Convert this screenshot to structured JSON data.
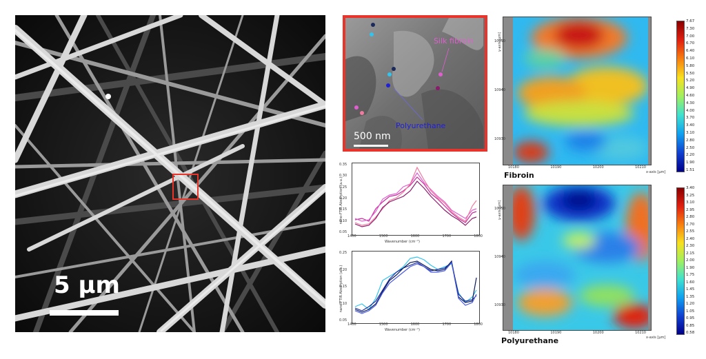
{
  "sem": {
    "scale_label": "5 µm"
  },
  "afm": {
    "label_silk": "Silk fibroin",
    "label_pu": "Polyurethane",
    "scale_label": "500 nm",
    "colors": {
      "silk": "#e05fd0",
      "pu": "#2020d8",
      "cyan": "#31c4ef",
      "navy": "#1a2a5a"
    }
  },
  "spectra_top": {
    "ylabel": "nano-FTIR Absorption (a.u.)",
    "xlabel": "Wavenumber (cm⁻¹)",
    "xticks": [
      "1400",
      "1500",
      "1600",
      "1700",
      "1800"
    ],
    "yticks": [
      "0.05",
      "0.10",
      "0.15",
      "0.20",
      "0.25",
      "0.30",
      "0.35"
    ],
    "colors": [
      "#c52a9a",
      "#e05fd0",
      "#f07aa0",
      "#8a1a6a"
    ]
  },
  "spectra_bottom": {
    "ylabel": "nano-FTIR Absorption (a.u.)",
    "xlabel": "Wavenumber (cm⁻¹)",
    "xticks": [
      "1400",
      "1500",
      "1600",
      "1700",
      "1800"
    ],
    "yticks": [
      "0.05",
      "0.10",
      "0.15",
      "0.20",
      "0.25"
    ],
    "colors": [
      "#31c4ef",
      "#1a2a9a",
      "#0a1a5a",
      "#4a5adf"
    ]
  },
  "map_fibroin": {
    "title": "Fibroin",
    "xaxis_label": "x-axis [µm]",
    "yaxis_label": "y-axis [µm]",
    "xticks": [
      "10180",
      "10190",
      "10200",
      "10210"
    ],
    "yticks": [
      "10950",
      "10940",
      "10930"
    ],
    "colorbar": [
      "7.67",
      "7.30",
      "7.00",
      "6.70",
      "6.40",
      "6.10",
      "5.80",
      "5.50",
      "5.20",
      "4.90",
      "4.60",
      "4.30",
      "4.00",
      "3.70",
      "3.40",
      "3.10",
      "2.80",
      "2.50",
      "2.20",
      "1.90",
      "1.51"
    ]
  },
  "map_pu": {
    "title": "Polyurethane",
    "xaxis_label": "x-axis [µm]",
    "yaxis_label": "y-axis [µm]",
    "xticks": [
      "10180",
      "10190",
      "10200",
      "10210"
    ],
    "yticks": [
      "10950",
      "10940",
      "10930"
    ],
    "colorbar": [
      "3.40",
      "3.25",
      "3.10",
      "2.95",
      "2.80",
      "2.70",
      "2.55",
      "2.40",
      "2.30",
      "2.15",
      "2.00",
      "1.90",
      "1.75",
      "1.60",
      "1.45",
      "1.35",
      "1.20",
      "1.05",
      "0.95",
      "0.85",
      "0.58"
    ]
  }
}
